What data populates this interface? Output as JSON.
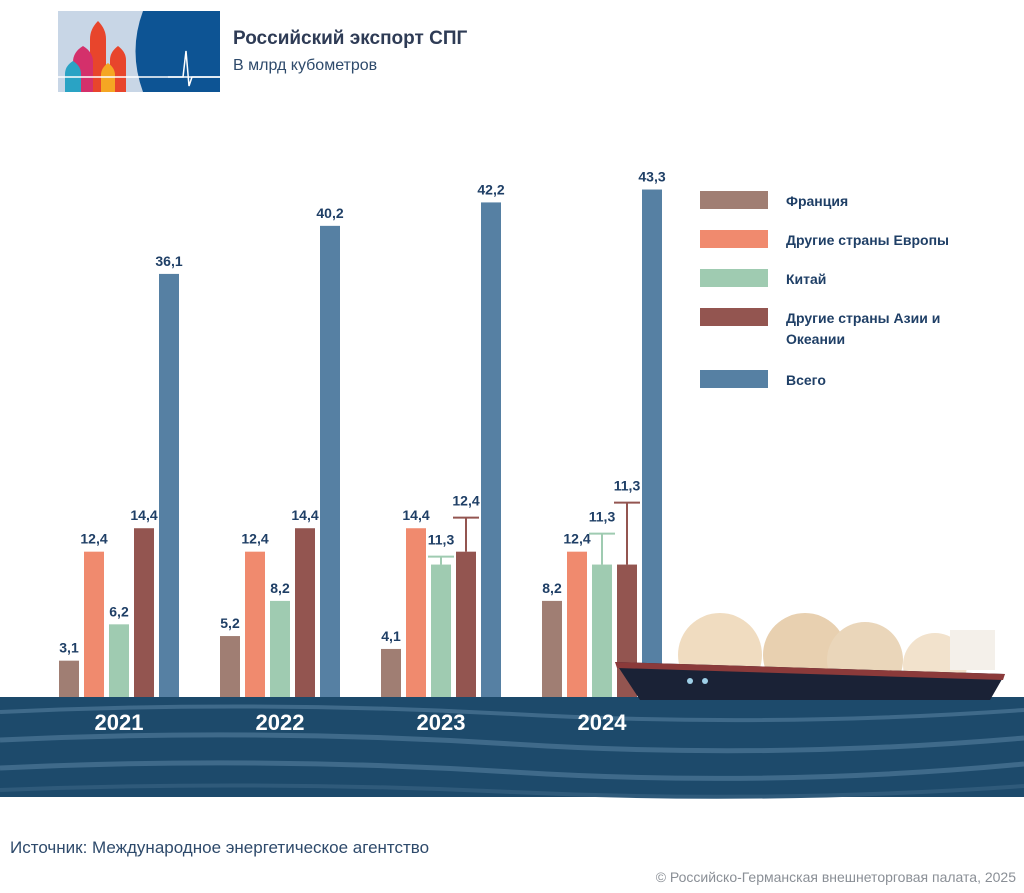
{
  "header": {
    "title": "Российский экспорт СПГ",
    "subtitle": "В млрд кубометров"
  },
  "chart_data": {
    "type": "bar",
    "categories": [
      "2021",
      "2022",
      "2023",
      "2024"
    ],
    "series": [
      {
        "name": "Франция",
        "color": "#a07e73",
        "values": [
          3.1,
          5.2,
          4.1,
          8.2
        ],
        "labels": [
          "3,1",
          "5,2",
          "4,1",
          "8,2"
        ]
      },
      {
        "name": "Другие страны Европы",
        "color": "#f08a6e",
        "values": [
          12.4,
          12.4,
          14.4,
          12.4
        ],
        "labels": [
          "12,4",
          "12,4",
          "14,4",
          "12,4"
        ]
      },
      {
        "name": "Китай",
        "color": "#9fcbb1",
        "values": [
          6.2,
          8.2,
          11.3,
          11.3
        ],
        "labels": [
          "6,2",
          "8,2",
          "11,3",
          "11,3"
        ]
      },
      {
        "name": "Другие страны Азии и Океании",
        "color": "#935550",
        "values": [
          14.4,
          14.4,
          12.4,
          11.3
        ],
        "labels": [
          "14,4",
          "14,4",
          "12,4",
          "11,3"
        ]
      },
      {
        "name": "Всего",
        "color": "#5680a3",
        "values": [
          36.1,
          40.2,
          42.2,
          43.3
        ],
        "labels": [
          "36,1",
          "40,2",
          "42,2",
          "43,3"
        ]
      }
    ],
    "ylim": [
      0,
      45
    ],
    "legend": "top-right",
    "grid": false
  },
  "footer": {
    "source": "Источник: Международное энергетическое агентство",
    "copyright": "© Российско-Германская внешнеторговая палата, 2025"
  }
}
